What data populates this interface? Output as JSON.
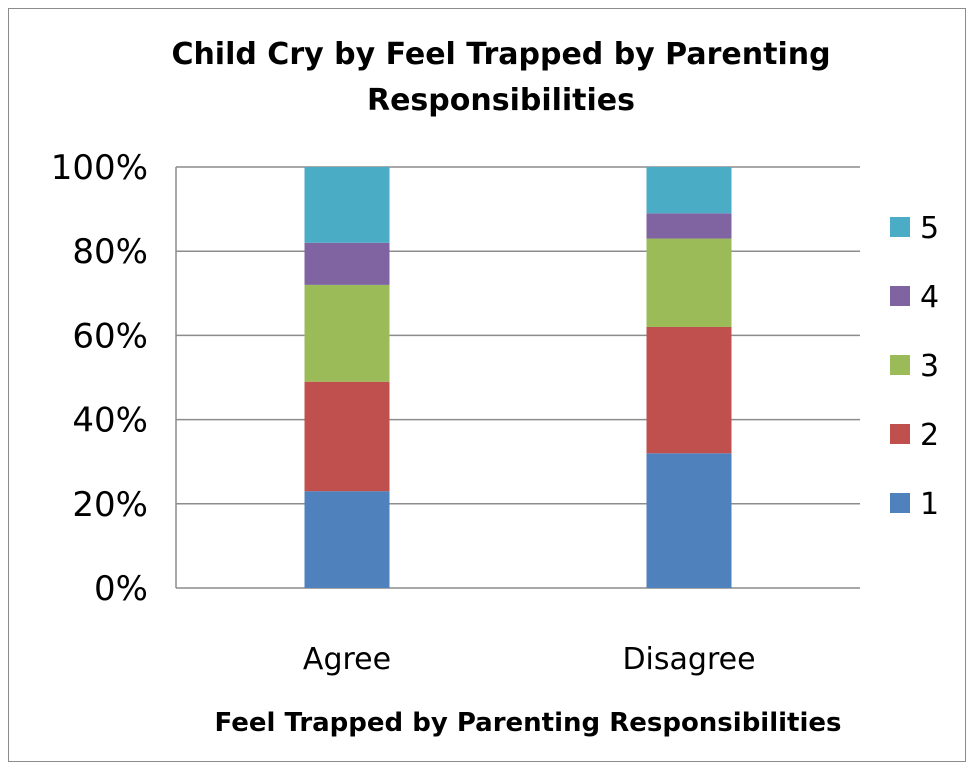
{
  "chart_data": {
    "type": "bar",
    "stacked": true,
    "percent_stacked": true,
    "title_lines": [
      "Child Cry by Feel Trapped by Parenting",
      "Responsibilities"
    ],
    "xlabel": "Feel Trapped by Parenting Responsibilities",
    "ylabel": "",
    "categories": [
      "Agree",
      "Disagree"
    ],
    "ylim": [
      0,
      100
    ],
    "y_ticks": [
      "0%",
      "20%",
      "40%",
      "60%",
      "80%",
      "100%"
    ],
    "grid": true,
    "legend_position": "right",
    "series": [
      {
        "name": "1",
        "color": "#4f81bd",
        "values": [
          23,
          32
        ]
      },
      {
        "name": "2",
        "color": "#c0504d",
        "values": [
          26,
          30
        ]
      },
      {
        "name": "3",
        "color": "#9bbb59",
        "values": [
          23,
          21
        ]
      },
      {
        "name": "4",
        "color": "#8064a2",
        "values": [
          10,
          6
        ]
      },
      {
        "name": "5",
        "color": "#4bacc6",
        "values": [
          18,
          11
        ]
      }
    ]
  }
}
